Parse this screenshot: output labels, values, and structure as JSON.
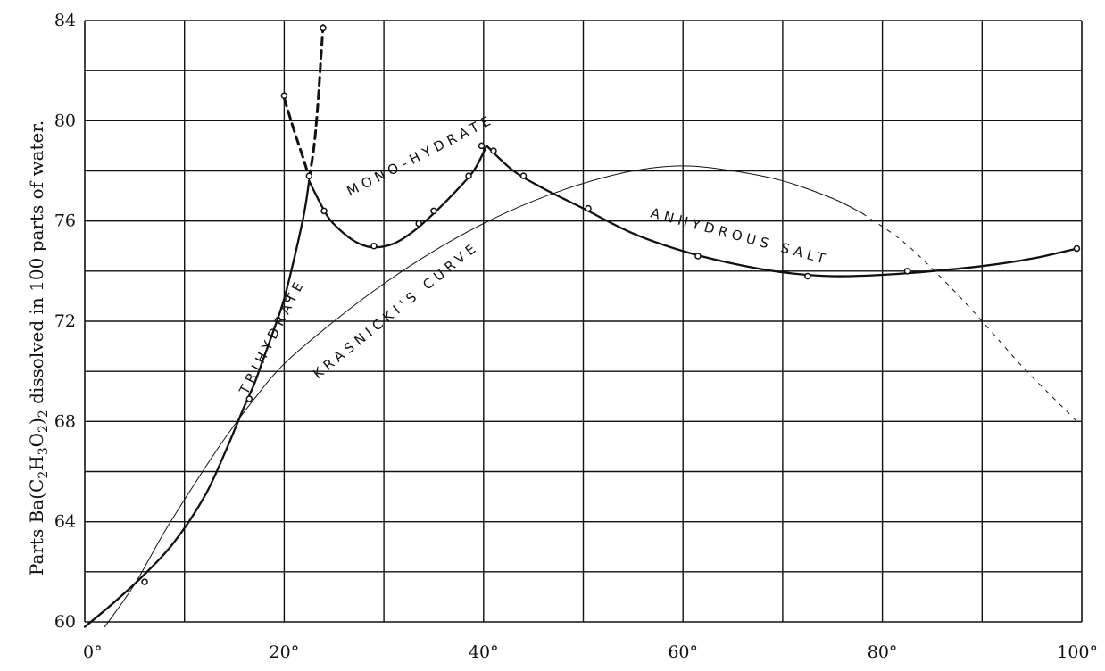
{
  "chart_data": {
    "type": "line",
    "title": "",
    "xlabel": "",
    "ylabel": "Parts Ba(C2H3O2)2 dissolved in 100 parts of water.",
    "ylabel_parts": {
      "a": "Parts Ba(C",
      "s1": "2",
      "b": "H",
      "s2": "3",
      "c": "O",
      "s3": "2",
      "d": ")",
      "s4": "2",
      "e": " dissolved in 100 parts of water."
    },
    "xlim": [
      0,
      100
    ],
    "ylim": [
      60,
      84
    ],
    "grid": true,
    "x_ticks": [
      {
        "value": 0,
        "label": "0°"
      },
      {
        "value": 20,
        "label": "20°"
      },
      {
        "value": 40,
        "label": "40°"
      },
      {
        "value": 60,
        "label": "60°"
      },
      {
        "value": 80,
        "label": "80°"
      },
      {
        "value": 100,
        "label": "100°"
      }
    ],
    "y_ticks": [
      {
        "value": 60,
        "label": "60"
      },
      {
        "value": 64,
        "label": "64"
      },
      {
        "value": 68,
        "label": "68"
      },
      {
        "value": 72,
        "label": "72"
      },
      {
        "value": 76,
        "label": "76"
      },
      {
        "value": 80,
        "label": "80"
      },
      {
        "value": 84,
        "label": "84"
      }
    ],
    "series": [
      {
        "name": "TRIHYDRATE",
        "style": "thick",
        "curve": [
          [
            0,
            59.8
          ],
          [
            3,
            60.8
          ],
          [
            6,
            61.9
          ],
          [
            9,
            63.2
          ],
          [
            12,
            65.0
          ],
          [
            14,
            66.7
          ],
          [
            16,
            68.6
          ],
          [
            17,
            69.5
          ],
          [
            18,
            70.6
          ],
          [
            19,
            71.7
          ],
          [
            20,
            72.9
          ],
          [
            21,
            74.5
          ],
          [
            22,
            76.3
          ],
          [
            22.5,
            77.6
          ]
        ],
        "points": [
          [
            6,
            61.6
          ],
          [
            16.5,
            68.9
          ],
          [
            20.3,
            72.9
          ],
          [
            22.5,
            77.8
          ]
        ]
      },
      {
        "name": "MONO-HYDRATE",
        "style": "thick",
        "curve": [
          [
            22.5,
            77.6
          ],
          [
            23.5,
            76.8
          ],
          [
            24.5,
            76.1
          ],
          [
            26,
            75.5
          ],
          [
            27.5,
            75.1
          ],
          [
            29,
            74.95
          ],
          [
            31,
            75.1
          ],
          [
            33,
            75.6
          ],
          [
            35,
            76.3
          ],
          [
            37,
            77.1
          ],
          [
            39,
            78.0
          ],
          [
            40.3,
            79.0
          ]
        ],
        "points": [
          [
            24,
            76.4
          ],
          [
            29,
            75.0
          ],
          [
            33.5,
            75.9
          ],
          [
            35,
            76.4
          ],
          [
            38.5,
            77.8
          ],
          [
            39.8,
            79.0
          ]
        ]
      },
      {
        "name": "ANHYDROUS SALT",
        "style": "thick",
        "curve": [
          [
            40.3,
            79.0
          ],
          [
            43,
            78.0
          ],
          [
            46,
            77.3
          ],
          [
            50,
            76.5
          ],
          [
            55,
            75.5
          ],
          [
            60,
            74.8
          ],
          [
            65,
            74.3
          ],
          [
            70,
            73.95
          ],
          [
            75,
            73.8
          ],
          [
            80,
            73.85
          ],
          [
            85,
            74.0
          ],
          [
            90,
            74.2
          ],
          [
            95,
            74.5
          ],
          [
            99.5,
            74.9
          ]
        ],
        "points": [
          [
            41,
            78.8
          ],
          [
            44,
            77.8
          ],
          [
            50.5,
            76.5
          ],
          [
            61.5,
            74.6
          ],
          [
            72.5,
            73.8
          ],
          [
            82.5,
            74.0
          ],
          [
            99.5,
            74.9
          ]
        ]
      },
      {
        "name": "KRASNICKI'S CURVE",
        "style": "thin",
        "curve": [
          [
            2,
            59.8
          ],
          [
            5,
            61.5
          ],
          [
            8,
            63.6
          ],
          [
            11,
            65.5
          ],
          [
            14,
            67.3
          ],
          [
            17,
            68.9
          ],
          [
            20,
            70.3
          ],
          [
            25,
            72.0
          ],
          [
            30,
            73.5
          ],
          [
            35,
            74.8
          ],
          [
            40,
            75.9
          ],
          [
            45,
            76.8
          ],
          [
            50,
            77.5
          ],
          [
            55,
            78.0
          ],
          [
            60,
            78.2
          ],
          [
            65,
            78.0
          ],
          [
            70,
            77.6
          ],
          [
            75,
            76.9
          ],
          [
            78,
            76.3
          ]
        ],
        "curve_dashed": [
          [
            78,
            76.3
          ],
          [
            82,
            75.2
          ],
          [
            86,
            73.7
          ],
          [
            90,
            72.0
          ],
          [
            94,
            70.2
          ],
          [
            97,
            69.0
          ],
          [
            99.5,
            68.0
          ]
        ],
        "points": []
      },
      {
        "name": "",
        "style": "thick-dashed",
        "curve": [
          [
            20,
            80.9
          ],
          [
            21,
            79.6
          ],
          [
            22,
            78.4
          ],
          [
            22.5,
            77.7
          ]
        ],
        "points": [
          [
            20,
            81.0
          ]
        ]
      },
      {
        "name": "",
        "style": "thick-dashed",
        "curve": [
          [
            22.5,
            77.7
          ],
          [
            23,
            79.0
          ],
          [
            23.4,
            80.8
          ],
          [
            23.7,
            82.6
          ],
          [
            23.9,
            83.8
          ]
        ],
        "points": [
          [
            23.9,
            83.7
          ]
        ]
      }
    ],
    "annotations": [
      {
        "text": "TRIHYDRATE",
        "series": "TRIHYDRATE"
      },
      {
        "text": "MONO-HYDRATE",
        "series": "MONO-HYDRATE"
      },
      {
        "text": "ANHYDROUS SALT",
        "series": "ANHYDROUS SALT"
      },
      {
        "text": "KRASNICKI'S CURVE",
        "series": "KRASNICKI'S CURVE"
      }
    ]
  },
  "colors": {
    "ink": "#111111",
    "paper": "#ffffff"
  }
}
